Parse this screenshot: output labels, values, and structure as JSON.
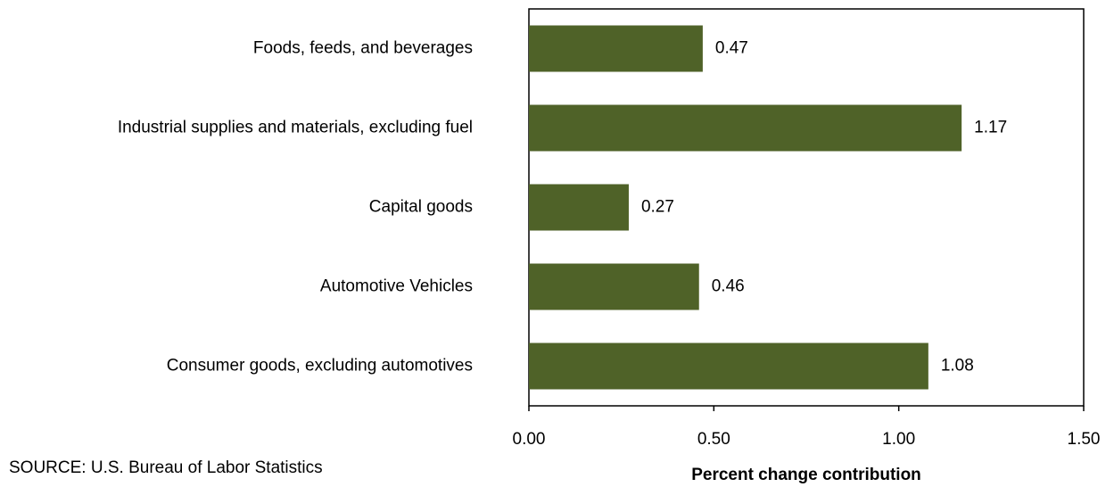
{
  "chart_data": {
    "type": "bar",
    "orientation": "horizontal",
    "categories": [
      "Foods, feeds, and beverages",
      "Industrial supplies and materials, excluding fuel",
      "Capital goods",
      "Automotive Vehicles",
      "Consumer goods, excluding automotives"
    ],
    "values": [
      0.47,
      1.17,
      0.27,
      0.46,
      1.08
    ],
    "color": "#4f6228",
    "xlim": [
      0,
      1.5
    ],
    "xticks": [
      {
        "value": 0,
        "label": "0.00"
      },
      {
        "value": 0.5,
        "label": "0.50"
      },
      {
        "value": 1,
        "label": "1.00"
      },
      {
        "value": 1.5,
        "label": "1.50"
      }
    ],
    "x_label": "Percent change contribution",
    "source": "SOURCE: U.S. Bureau of Labor Statistics"
  }
}
